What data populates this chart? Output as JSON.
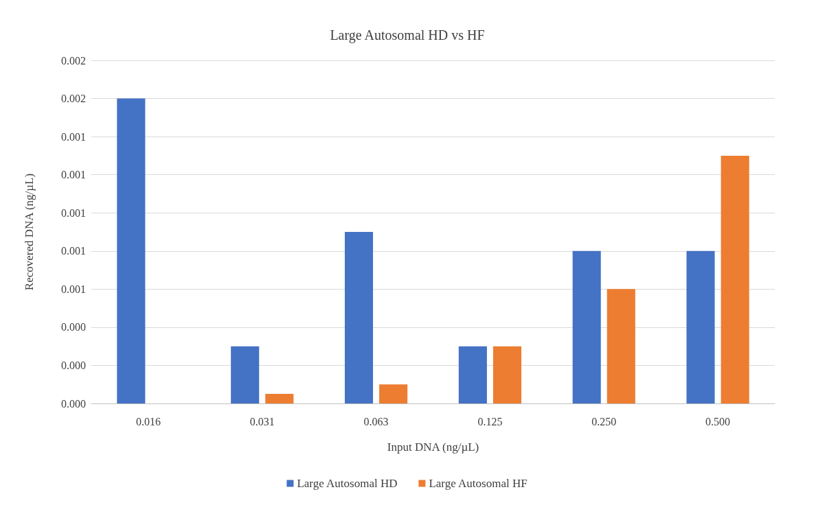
{
  "chart_data": {
    "type": "bar",
    "title": "Large Autosomal HD vs HF",
    "xlabel": "Input DNA (ng/µL)",
    "ylabel": "Recovered DNA (ng/µL)",
    "categories": [
      "0.016",
      "0.031",
      "0.063",
      "0.125",
      "0.250",
      "0.500"
    ],
    "series": [
      {
        "name": "Large Autosomal HD",
        "color": "#4472c4",
        "values": [
          0.0016,
          0.0003,
          0.0009,
          0.0003,
          0.0008,
          0.0008
        ]
      },
      {
        "name": "Large Autosomal HF",
        "color": "#ed7d31",
        "values": [
          null,
          5e-05,
          0.0001,
          0.0003,
          0.0006,
          0.0013
        ]
      }
    ],
    "ylim": [
      0,
      0.0018
    ],
    "yticks": [
      {
        "value": 0,
        "label": "0.000"
      },
      {
        "value": 0.0002,
        "label": "0.000"
      },
      {
        "value": 0.0004,
        "label": "0.000"
      },
      {
        "value": 0.0006,
        "label": "0.001"
      },
      {
        "value": 0.0008,
        "label": "0.001"
      },
      {
        "value": 0.001,
        "label": "0.001"
      },
      {
        "value": 0.0012,
        "label": "0.001"
      },
      {
        "value": 0.0014,
        "label": "0.001"
      },
      {
        "value": 0.0016,
        "label": "0.002"
      },
      {
        "value": 0.0018,
        "label": "0.002"
      }
    ],
    "grid": "y",
    "legend": "bottom"
  }
}
